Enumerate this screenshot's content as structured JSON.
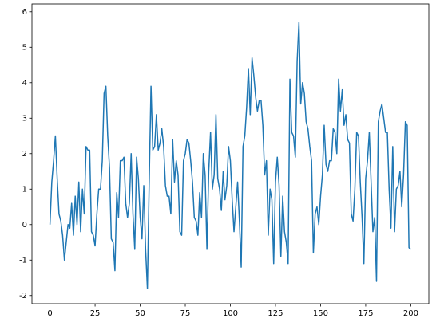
{
  "chart_data": {
    "type": "line",
    "x": [
      0,
      1,
      2,
      3,
      4,
      5,
      6,
      7,
      8,
      9,
      10,
      11,
      12,
      13,
      14,
      15,
      16,
      17,
      18,
      19,
      20,
      21,
      22,
      23,
      24,
      25,
      26,
      27,
      28,
      29,
      30,
      31,
      32,
      33,
      34,
      35,
      36,
      37,
      38,
      39,
      40,
      41,
      42,
      43,
      44,
      45,
      46,
      47,
      48,
      49,
      50,
      51,
      52,
      53,
      54,
      55,
      56,
      57,
      58,
      59,
      60,
      61,
      62,
      63,
      64,
      65,
      66,
      67,
      68,
      69,
      70,
      71,
      72,
      73,
      74,
      75,
      76,
      77,
      78,
      79,
      80,
      81,
      82,
      83,
      84,
      85,
      86,
      87,
      88,
      89,
      90,
      91,
      92,
      93,
      94,
      95,
      96,
      97,
      98,
      99,
      100,
      101,
      102,
      103,
      104,
      105,
      106,
      107,
      108,
      109,
      110,
      111,
      112,
      113,
      114,
      115,
      116,
      117,
      118,
      119,
      120,
      121,
      122,
      123,
      124,
      125,
      126,
      127,
      128,
      129,
      130,
      131,
      132,
      133,
      134,
      135,
      136,
      137,
      138,
      139,
      140,
      141,
      142,
      143,
      144,
      145,
      146,
      147,
      148,
      149,
      150,
      151,
      152,
      153,
      154,
      155,
      156,
      157,
      158,
      159,
      160,
      161,
      162,
      163,
      164,
      165,
      166,
      167,
      168,
      169,
      170,
      171,
      172,
      173,
      174,
      175,
      176,
      177,
      178,
      179,
      180,
      181,
      182,
      183,
      184,
      185,
      186,
      187,
      188,
      189,
      190,
      191,
      192,
      193,
      194,
      195,
      196,
      197,
      198,
      199,
      200
    ],
    "values": [
      0,
      1.2,
      1.8,
      2.5,
      1.3,
      0.3,
      0.1,
      -0.3,
      -1.0,
      -0.5,
      0.0,
      -0.1,
      0.6,
      -0.3,
      0.8,
      0.0,
      1.2,
      -0.2,
      1.0,
      0.3,
      2.2,
      2.1,
      2.1,
      -0.2,
      -0.3,
      -0.6,
      0.3,
      1.0,
      1.0,
      1.8,
      3.7,
      3.9,
      2.5,
      1.6,
      -0.4,
      -0.5,
      -1.3,
      0.9,
      0.2,
      1.8,
      1.8,
      1.9,
      0.6,
      0.2,
      0.6,
      2.0,
      0.3,
      -0.7,
      1.9,
      1.3,
      0.2,
      -0.4,
      1.1,
      -0.7,
      -1.8,
      1.2,
      3.9,
      2.1,
      2.2,
      3.1,
      2.1,
      2.3,
      2.7,
      2.2,
      1.1,
      0.8,
      0.8,
      0.3,
      2.4,
      1.2,
      1.8,
      1.4,
      -0.2,
      -0.3,
      1.8,
      2.0,
      2.4,
      2.3,
      1.8,
      1.2,
      0.2,
      0.1,
      -0.3,
      0.9,
      0.2,
      2.0,
      1.4,
      -0.7,
      1.5,
      2.6,
      1.0,
      1.4,
      3.1,
      1.3,
      1.0,
      0.4,
      1.5,
      0.7,
      1.1,
      2.2,
      1.8,
      0.7,
      -0.2,
      0.5,
      1.2,
      0.1,
      -1.2,
      2.2,
      2.5,
      3.3,
      4.4,
      3.1,
      4.7,
      4.2,
      3.6,
      3.2,
      3.5,
      3.5,
      2.8,
      1.4,
      1.8,
      -0.3,
      1.0,
      0.7,
      -1.1,
      1.2,
      1.9,
      1.1,
      -0.9,
      0.8,
      -0.2,
      -0.5,
      -1.1,
      4.1,
      2.6,
      2.5,
      1.9,
      4.6,
      5.7,
      3.4,
      4.0,
      3.7,
      2.9,
      2.7,
      2.2,
      1.8,
      -0.8,
      0.3,
      0.5,
      0.0,
      0.8,
      1.4,
      2.8,
      1.7,
      1.5,
      1.8,
      1.8,
      2.7,
      2.6,
      2.0,
      4.1,
      3.2,
      3.8,
      2.8,
      3.1,
      2.4,
      2.3,
      0.3,
      0.1,
      1.0,
      2.6,
      2.5,
      1.2,
      0.2,
      -1.1,
      1.3,
      1.8,
      2.6,
      1.2,
      -0.2,
      0.2,
      -1.6,
      2.9,
      3.2,
      3.4,
      3.0,
      2.6,
      2.6,
      1.0,
      -0.1,
      2.2,
      -0.2,
      1.0,
      1.1,
      1.5,
      0.5,
      1.4,
      2.9,
      2.8,
      -0.65,
      -0.7
    ],
    "color": "#1f77b4",
    "xlim": [
      -10,
      210
    ],
    "xticks": [
      0,
      25,
      50,
      75,
      100,
      125,
      150,
      175,
      200
    ],
    "ylim": [
      -2.23,
      6.22
    ],
    "yticks": [
      -2,
      -1,
      0,
      1,
      2,
      3,
      4,
      5,
      6
    ]
  }
}
